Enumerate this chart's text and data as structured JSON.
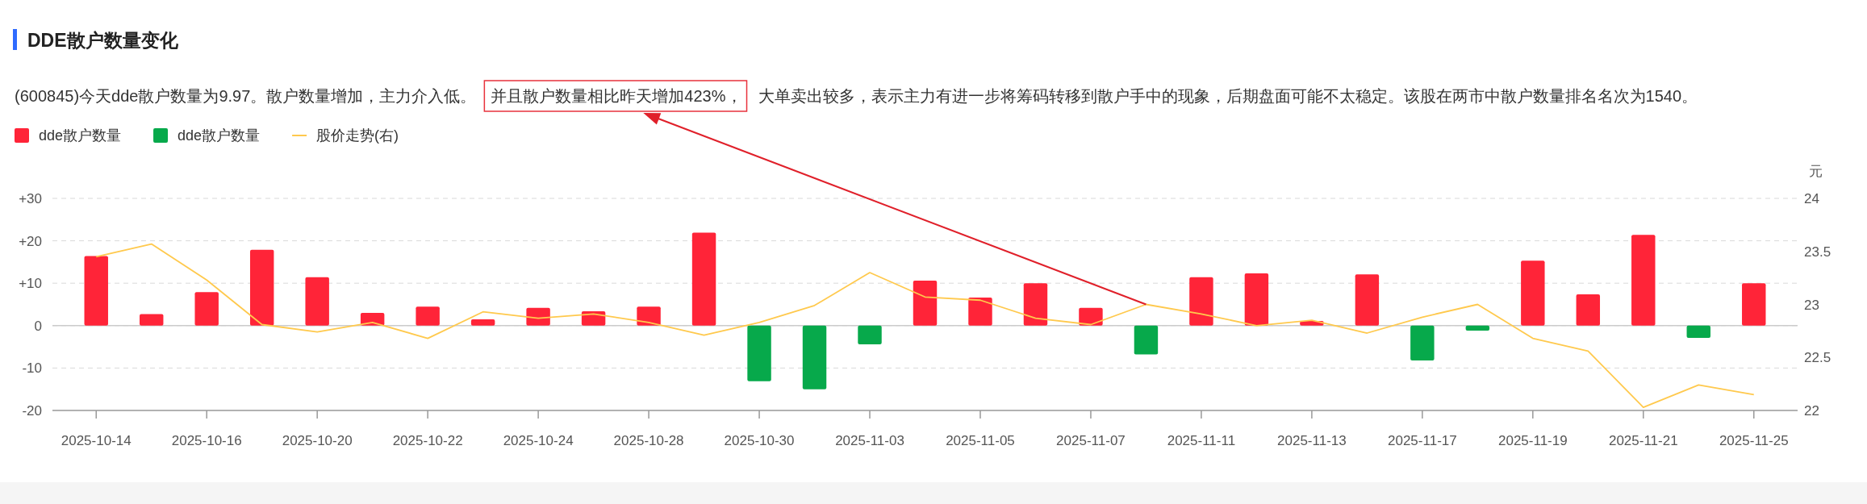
{
  "chart_data": {
    "type": "bar",
    "title": "DDE散户数量变化",
    "subtitle": "(600845)今天dde散户数量为9.97。散户数量增加，主力介入低。",
    "annotations": [
      "并且散户数量相比昨天增加423%，",
      "大单卖出较多，表示主力有进一步将筹码转移到散户手中的现象，后期盘面可能不太稳定。该股在两市中散户数量排名名次为1540。"
    ],
    "categories": [
      "2025-10-14",
      null,
      "2025-10-16",
      null,
      "2025-10-20",
      null,
      "2025-10-22",
      null,
      "2025-10-24",
      null,
      "2025-10-28",
      null,
      "2025-10-30",
      null,
      "2025-11-03",
      null,
      "2025-11-05",
      null,
      "2025-11-07",
      null,
      "2025-11-11",
      null,
      "2025-11-13",
      null,
      "2025-11-17",
      null,
      "2025-11-19",
      null,
      "2025-11-21",
      null,
      "2025-11-25"
    ],
    "series": [
      {
        "name": "dde散户数量",
        "color": "#ff2438",
        "values": [
          16.4,
          2.7,
          7.9,
          17.9,
          11.4,
          3.0,
          4.5,
          1.5,
          4.2,
          3.4,
          4.5,
          21.9,
          null,
          null,
          null,
          10.6,
          6.6,
          10.0,
          4.2,
          null,
          11.4,
          12.3,
          1.1,
          12.1,
          null,
          null,
          15.3,
          7.4,
          21.4,
          null,
          10.0
        ]
      },
      {
        "name": "dde散户数量",
        "color": "#07a94b",
        "values": [
          null,
          null,
          null,
          null,
          null,
          null,
          null,
          null,
          null,
          null,
          null,
          null,
          -13.1,
          -15.0,
          -4.4,
          null,
          null,
          null,
          null,
          -6.8,
          null,
          null,
          null,
          null,
          -8.2,
          -1.2,
          null,
          null,
          null,
          -2.9,
          null
        ]
      },
      {
        "name": "股价走势(右)",
        "type": "line",
        "axis": "y2",
        "color": "#ffc94d",
        "values": [
          23.45,
          23.57,
          23.23,
          22.81,
          22.74,
          22.83,
          22.68,
          22.93,
          22.87,
          22.91,
          22.83,
          22.71,
          22.83,
          22.99,
          23.3,
          23.07,
          23.04,
          22.87,
          22.81,
          23.0,
          22.91,
          22.8,
          22.85,
          22.73,
          22.88,
          23.0,
          22.68,
          22.56,
          22.03,
          22.24,
          22.15
        ]
      }
    ],
    "ylim": [
      -20,
      30
    ],
    "yticks": [
      {
        "value": -20,
        "label": "-20"
      },
      {
        "value": -10,
        "label": "-10"
      },
      0,
      {
        "value": 10,
        "label": "+10"
      },
      {
        "value": 20,
        "label": "+20"
      },
      {
        "value": 30,
        "label": "+30"
      }
    ],
    "y2label": "元",
    "y2lim": [
      22,
      24
    ],
    "y2ticks": [
      22,
      22.5,
      23,
      23.5,
      24
    ],
    "ref_lines": [
      {
        "axis": "y",
        "value": 0,
        "color": "#cccccc"
      }
    ],
    "grid": "y",
    "legend": "top left"
  }
}
